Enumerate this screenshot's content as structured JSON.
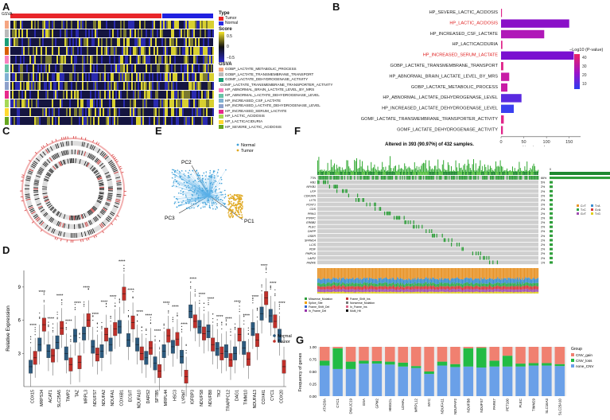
{
  "panels": {
    "A": "A",
    "B": "B",
    "C": "C",
    "D": "D",
    "E": "E",
    "F": "F",
    "G": "G"
  },
  "panelA": {
    "gsva_label": "GSVA",
    "type_title": "Type",
    "type_items": [
      {
        "label": "Tumor",
        "color": "#e8262a"
      },
      {
        "label": "Normal",
        "color": "#2a2ae0"
      }
    ],
    "score_title": "Score",
    "score_ticks": [
      "0.5",
      "0",
      "−0.5"
    ],
    "gsva_title": "GSVA",
    "gene_sets": [
      {
        "label": "GOBP_LACTATE_METABOLIC_PROCESS",
        "color": "#f4a582"
      },
      {
        "label": "GOBP_LACTATE_TRANSMEMBRANE_TRANSPORT",
        "color": "#bababa"
      },
      {
        "label": "GOMF_LACTATE_DEHYDROGENASE_ACTIVITY",
        "color": "#1b9e77"
      },
      {
        "label": "GOMF_LACTATE_TRANSMEMBRANE_TRANSPORTER_ACTIVITY",
        "color": "#d95f02"
      },
      {
        "label": "HP_ABNORMAL_BRAIN_LACTATE_LEVEL_BY_MRS",
        "color": "#f781bf"
      },
      {
        "label": "HP_ABNORMAL_LACTATE_DEHYDROGENASE_LEVEL",
        "color": "#66c2a5"
      },
      {
        "label": "HP_INCREASED_CSF_LACTATE",
        "color": "#80b1d3"
      },
      {
        "label": "HP_INCREASED_LACTATE_DEHYDROGENASE_LEVEL",
        "color": "#8da0cb"
      },
      {
        "label": "HP_INCREASED_SERUM_LACTATE",
        "color": "#e7298a"
      },
      {
        "label": "HP_LACTIC_ACIDOSIS",
        "color": "#a6d854"
      },
      {
        "label": "HP_LACTICACIDURIA",
        "color": "#ffd92f"
      },
      {
        "label": "HP_SEVERE_LACTIC_ACIDOSIS",
        "color": "#66a61e"
      }
    ]
  },
  "panelB": {
    "chart_data": {
      "type": "bar",
      "orientation": "horizontal",
      "categories": [
        "HP_SEVERE_LACTIC_ACIDOSIS",
        "HP_LACTIC_ACIDOSIS",
        "HP_INCREASED_CSF_LACTATE",
        "HP_LACTICACIDURIA",
        "HP_INCREASED_SERUM_LACTATE",
        "GOBP_LACTATE_TRANSMEMBRANE_TRANSPORT",
        "HP_ABNORMAL_BRAIN_LACTATE_LEVEL_BY_MRS",
        "GOBP_LACTATE_METABOLIC_PROCESS",
        "HP_ABNORMAL_LACTATE_DEHYDROGENASE_LEVEL",
        "HP_INCREASED_LACTATE_DEHYDROGENASE_LEVEL",
        "GOMF_LACTATE_TRANSMEMBRANE_TRANSPORTER_ACTIVITY",
        "GOMF_LACTATE_DEHYDROGENASE_ACTIVITY"
      ],
      "highlighted": [
        "HP_LACTIC_ACIDOSIS",
        "HP_INCREASED_SERUM_LACTATE"
      ],
      "values": [
        2,
        150,
        95,
        3,
        160,
        5,
        18,
        14,
        45,
        28,
        6,
        4
      ],
      "colors": [
        "#e0258a",
        "#8a10c8",
        "#b018b8",
        "#e0258a",
        "#7a10d0",
        "#e0258a",
        "#c81ca6",
        "#c81ca6",
        "#5a2ae0",
        "#3a40f0",
        "#e0258a",
        "#e0258a"
      ],
      "xlabel": "Number of genes",
      "xticks": [
        "0",
        "50",
        "100",
        "150"
      ],
      "xlim": [
        0,
        175
      ],
      "legend_title": "−Log10 (P-value)",
      "legend_ticks": [
        "40",
        "30",
        "20",
        "10"
      ]
    }
  },
  "panelE": {
    "legend": [
      {
        "label": "Normal",
        "color": "#3fa0d8"
      },
      {
        "label": "Tumor",
        "color": "#e0a820"
      }
    ],
    "axes": [
      "PC2",
      "PC3",
      "PC1"
    ]
  },
  "panelD": {
    "ylabel": "Relative Expression",
    "yticks": [
      "9",
      "6",
      "3"
    ],
    "legend": [
      {
        "label": "Normal",
        "color": "#2c5a7e"
      },
      {
        "label": "Tumor",
        "color": "#c0302a"
      }
    ],
    "sig": "****",
    "chart_data": {
      "type": "box",
      "categories": [
        "COX15",
        "MRPS34",
        "ACAT1",
        "SLC25A5",
        "TIMP2",
        "TAZ",
        "MRPL3",
        "NDUFS7",
        "NDUFA2",
        "NDUFA1",
        "COX6B1",
        "ECSIT",
        "NDUFA10",
        "DARS2",
        "SPTB5",
        "MRPL44",
        "HSC3",
        "LYRM7",
        "IGFBP3",
        "NDUFS8",
        "NDUFB8",
        "TK2",
        "TRAPPC12",
        "DAG1",
        "TIMM10",
        "NDUFA13",
        "COX4I1",
        "CYC1",
        "COX20"
      ],
      "normal": [
        1.8,
        3.8,
        3.2,
        4.0,
        3.0,
        4.6,
        4.8,
        3.6,
        3.2,
        3.8,
        5.4,
        4.2,
        3.8,
        2.6,
        2.1,
        3.2,
        3.6,
        2.7,
        6.8,
        5.4,
        5.0,
        3.4,
        3.2,
        3.0,
        3.5,
        5.2,
        6.6,
        6.4,
        4.6
      ],
      "tumor": [
        2.6,
        5.6,
        2.8,
        5.3,
        2.0,
        2.2,
        6.0,
        2.9,
        4.7,
        5.2,
        8.4,
        5.8,
        3.0,
        3.5,
        1.4,
        4.6,
        4.3,
        0.9,
        5.9,
        4.8,
        3.8,
        3.0,
        2.4,
        4.7,
        2.5,
        4.2,
        8.0,
        5.9,
        1.8
      ]
    }
  },
  "panelF": {
    "title": "Altered in 393 (90.97%) of 432 samples.",
    "genes": [
      "TTN",
      "RB1",
      "NFKB1",
      "UTP",
      "CDH1KN",
      "LY75",
      "PCNT1",
      "CDS",
      "PRKG",
      "PTRPC",
      "ERBB2",
      "PLEC",
      "DHPP",
      "OSER",
      "SFRM14",
      "LCIS",
      "PDIF",
      "PMPCA",
      "LAIR2",
      "FAZRE"
    ],
    "pcts": [
      "66%",
      "5%",
      "2%",
      "2%",
      "2%",
      "2%",
      "2%",
      "2%",
      "2%",
      "2%",
      "2%",
      "2%",
      "2%",
      "2%",
      "2%",
      "2%",
      "2%",
      "2%",
      "2%",
      "1%"
    ],
    "legend_left": [
      "Missense_Mutation",
      "Splice_Site",
      "Frame_Shift_Del",
      "In_Frame_Del",
      "Frame_Shift_Ins",
      "Nonsense_Mutation",
      "In_Frame_Ins",
      "Multi_Hit"
    ],
    "legend_right": [
      "C>T",
      "T>A",
      "T>C",
      "G>A",
      "G>T",
      "T>G"
    ],
    "side_ticks": [
      "0",
      "161"
    ]
  },
  "panelG": {
    "ylabel": "Frequency of genes",
    "yticks": [
      "1.00",
      "0.75",
      "0.50",
      "0.25",
      "0.00"
    ],
    "legend_title": "Group",
    "legend": [
      {
        "label": "CNV_gain",
        "color": "#f08070"
      },
      {
        "label": "CNV_loss",
        "color": "#22bb44"
      },
      {
        "label": "none_CNV",
        "color": "#6aa0e8"
      }
    ],
    "chart_data": {
      "type": "bar",
      "stacked": true,
      "categories": [
        "ATAD3A",
        "CYC1",
        "DNAJC19",
        "GSA",
        "GPM2",
        "HMGCL",
        "LDHAL",
        "MRPL12",
        "MYC",
        "NDUFA11",
        "NDUFAF2",
        "NDUFB8",
        "NDUFS7",
        "PARK7",
        "PET100",
        "PLEC",
        "TIMM29",
        "SLC16A3",
        "SLC25A10"
      ],
      "none_CNV": [
        0.62,
        0.55,
        0.55,
        0.66,
        0.66,
        0.64,
        0.6,
        0.57,
        0.45,
        0.62,
        0.59,
        0.6,
        0.58,
        0.6,
        0.6,
        0.6,
        0.62,
        0.62,
        0.61
      ],
      "CNV_loss": [
        0.1,
        0.42,
        0.15,
        0.06,
        0.05,
        0.06,
        0.08,
        0.04,
        0.05,
        0.08,
        0.06,
        0.37,
        0.4,
        0.12,
        0.22,
        0.06,
        0.05,
        0.05,
        0.04
      ],
      "CNV_gain": [
        0.28,
        0.03,
        0.3,
        0.28,
        0.29,
        0.3,
        0.32,
        0.39,
        0.5,
        0.3,
        0.35,
        0.03,
        0.02,
        0.28,
        0.18,
        0.34,
        0.33,
        0.33,
        0.35
      ]
    }
  }
}
